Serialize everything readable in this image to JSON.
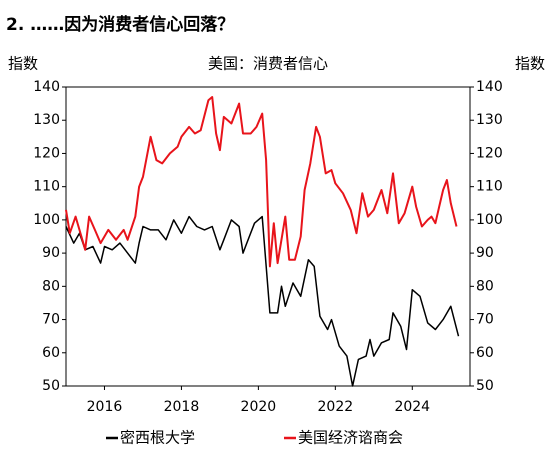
{
  "chart_data": {
    "type": "line",
    "title": "2. ……因为消费者信心回落？",
    "subtitle": "美国：消费者信心",
    "y_label": "指数",
    "y2_label": "指数",
    "xlim": [
      2015,
      2025.5
    ],
    "xticks": [
      2016,
      2018,
      2020,
      2022,
      2024
    ],
    "ylim": [
      50,
      140
    ],
    "yticks": [
      50,
      60,
      70,
      80,
      90,
      100,
      110,
      120,
      130,
      140
    ],
    "y2lim": [
      50,
      140
    ],
    "y2ticks": [
      50,
      60,
      70,
      80,
      90,
      100,
      110,
      120,
      130,
      140
    ],
    "legend": "bottom",
    "series": [
      {
        "name": "密西根大学",
        "color": "#000000",
        "axis": "y",
        "x": [
          2015.0,
          2015.2,
          2015.35,
          2015.5,
          2015.7,
          2015.9,
          2016.0,
          2016.2,
          2016.4,
          2016.6,
          2016.8,
          2016.9,
          2017.0,
          2017.2,
          2017.4,
          2017.6,
          2017.8,
          2018.0,
          2018.2,
          2018.4,
          2018.6,
          2018.8,
          2019.0,
          2019.1,
          2019.3,
          2019.5,
          2019.6,
          2019.7,
          2019.9,
          2020.1,
          2020.3,
          2020.5,
          2020.6,
          2020.7,
          2020.9,
          2021.1,
          2021.3,
          2021.45,
          2021.6,
          2021.8,
          2021.9,
          2022.1,
          2022.3,
          2022.45,
          2022.6,
          2022.8,
          2022.9,
          2023.0,
          2023.2,
          2023.4,
          2023.5,
          2023.7,
          2023.85,
          2024.0,
          2024.2,
          2024.4,
          2024.6,
          2024.8,
          2025.0,
          2025.2
        ],
        "values": [
          98,
          93,
          96,
          91,
          92,
          87,
          92,
          91,
          93,
          90,
          87,
          93,
          98,
          97,
          97,
          94,
          100,
          96,
          101,
          98,
          97,
          98,
          91,
          94,
          100,
          98,
          90,
          93,
          99,
          101,
          72,
          72,
          80,
          74,
          81,
          77,
          88,
          86,
          71,
          67,
          70,
          62,
          59,
          50,
          58,
          59,
          64,
          59,
          63,
          64,
          72,
          68,
          61,
          79,
          77,
          69,
          67,
          70,
          74,
          65
        ]
      },
      {
        "name": "美国经济谘商会",
        "color": "#e8141b",
        "axis": "y2",
        "x": [
          2015.0,
          2015.1,
          2015.25,
          2015.4,
          2015.5,
          2015.6,
          2015.75,
          2015.9,
          2016.1,
          2016.3,
          2016.5,
          2016.6,
          2016.8,
          2016.9,
          2017.0,
          2017.2,
          2017.35,
          2017.5,
          2017.7,
          2017.9,
          2018.0,
          2018.2,
          2018.35,
          2018.5,
          2018.7,
          2018.8,
          2018.9,
          2019.0,
          2019.1,
          2019.3,
          2019.5,
          2019.6,
          2019.8,
          2019.95,
          2020.1,
          2020.2,
          2020.3,
          2020.4,
          2020.5,
          2020.7,
          2020.8,
          2020.95,
          2021.1,
          2021.2,
          2021.35,
          2021.5,
          2021.6,
          2021.75,
          2021.9,
          2022.0,
          2022.2,
          2022.4,
          2022.55,
          2022.7,
          2022.85,
          2023.0,
          2023.2,
          2023.35,
          2023.5,
          2023.65,
          2023.8,
          2024.0,
          2024.1,
          2024.25,
          2024.4,
          2024.5,
          2024.6,
          2024.7,
          2024.8,
          2024.9,
          2025.0,
          2025.15
        ],
        "values": [
          103,
          96,
          101,
          95,
          91,
          101,
          97,
          93,
          97,
          94,
          97,
          94,
          101,
          110,
          113,
          125,
          118,
          117,
          120,
          122,
          125,
          128,
          126,
          127,
          136,
          137,
          126,
          121,
          131,
          129,
          135,
          126,
          126,
          128,
          132,
          118,
          86,
          99,
          87,
          101,
          88,
          88,
          95,
          109,
          117,
          128,
          125,
          114,
          115,
          111,
          108,
          103,
          96,
          108,
          101,
          103,
          109,
          102,
          114,
          99,
          102,
          110,
          104,
          98,
          100,
          101,
          99,
          104,
          109,
          112,
          105,
          98
        ]
      }
    ]
  }
}
